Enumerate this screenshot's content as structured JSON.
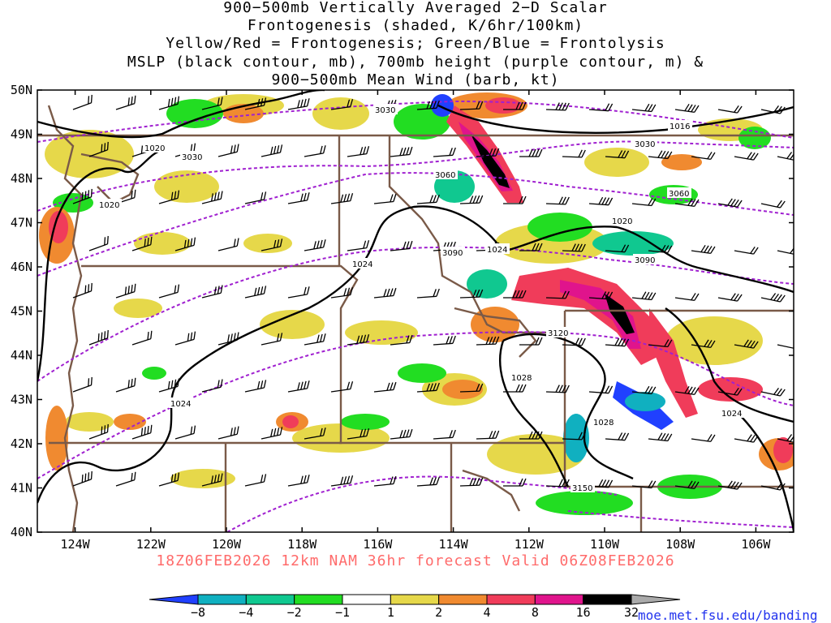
{
  "title_lines": [
    "900−500mb Vertically Averaged 2−D Scalar",
    "Frontogenesis (shaded, K/6hr/100km)",
    "Yellow/Red = Frontogenesis;  Green/Blue = Frontolysis",
    "MSLP (black contour, mb), 700mb height (purple contour, m) &",
    "900−500mb Mean Wind (barb, kt)"
  ],
  "map": {
    "lat_labels": [
      "50N",
      "49N",
      "48N",
      "47N",
      "46N",
      "45N",
      "44N",
      "43N",
      "42N",
      "41N",
      "40N"
    ],
    "lon_labels": [
      "124W",
      "122W",
      "120W",
      "118W",
      "116W",
      "114W",
      "112W",
      "110W",
      "108W",
      "106W"
    ],
    "lon_range": [
      -125,
      -105
    ],
    "lat_range": [
      40,
      50
    ],
    "colors": {
      "frontolysis_strong": "#2040ff",
      "frontolysis": "#10c8a0",
      "frontolysis_weak": "#22dd22",
      "frontogenesis_weak": "#e6d84a",
      "frontogenesis": "#f08a30",
      "frontogenesis_strong": "#f03c5a",
      "frontogenesis_max": "#e0148c",
      "extreme": "#000000",
      "height_contour": "#a020d0",
      "mslp_contour": "#000000",
      "boundaries": "#7a5a48"
    }
  },
  "contour_labels": {
    "mslp": [
      "1016",
      "1020",
      "1020",
      "1020",
      "1024",
      "1024",
      "1024",
      "1024",
      "1028",
      "1028"
    ],
    "height": [
      "3030",
      "3030",
      "3030",
      "3060",
      "3060",
      "3090",
      "3090",
      "3120",
      "3150"
    ]
  },
  "footer": "18Z06FEB2026 12km NAM 36hr forecast Valid 06Z08FEB2026",
  "colorbar": {
    "labels": [
      "−8",
      "−4",
      "−2",
      "−1",
      "1",
      "2",
      "4",
      "8",
      "16",
      "32"
    ],
    "colors": [
      "#2040ff",
      "#10b0c0",
      "#10c890",
      "#22dd22",
      "#ffffff",
      "#e6d84a",
      "#f08a30",
      "#f03c5a",
      "#e0148c",
      "#000000",
      "#aaaaaa"
    ]
  },
  "credit": "moe.met.fsu.edu/banding"
}
